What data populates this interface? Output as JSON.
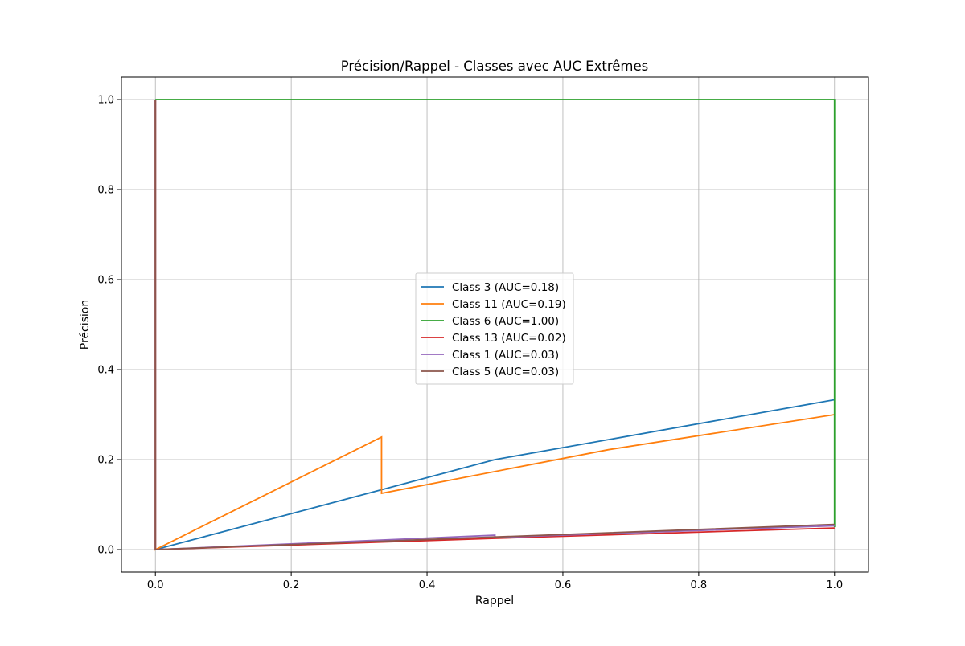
{
  "chart_data": {
    "type": "line",
    "title": "Précision/Rappel - Classes avec AUC Extrêmes",
    "xlabel": "Rappel",
    "ylabel": "Précision",
    "xlim": [
      -0.05,
      1.05
    ],
    "ylim": [
      -0.05,
      1.05
    ],
    "xticks": [
      0.0,
      0.2,
      0.4,
      0.6,
      0.8,
      1.0
    ],
    "yticks": [
      0.0,
      0.2,
      0.4,
      0.6,
      0.8,
      1.0
    ],
    "xtick_labels": [
      "0.0",
      "0.2",
      "0.4",
      "0.6",
      "0.8",
      "1.0"
    ],
    "ytick_labels": [
      "0.0",
      "0.2",
      "0.4",
      "0.6",
      "0.8",
      "1.0"
    ],
    "grid": true,
    "legend_position": "center",
    "series": [
      {
        "name": "Class 3 (AUC=0.18)",
        "color": "#1f77b4",
        "points": [
          [
            0,
            1.0
          ],
          [
            0,
            0.0
          ],
          [
            0.333,
            0.133
          ],
          [
            0.5,
            0.2
          ],
          [
            1.0,
            0.333
          ]
        ]
      },
      {
        "name": "Class 11 (AUC=0.19)",
        "color": "#ff7f0e",
        "points": [
          [
            0,
            1.0
          ],
          [
            0,
            0.0
          ],
          [
            0.333,
            0.25
          ],
          [
            0.333,
            0.125
          ],
          [
            0.667,
            0.222
          ],
          [
            1.0,
            0.3
          ]
        ]
      },
      {
        "name": "Class 6 (AUC=1.00)",
        "color": "#2ca02c",
        "points": [
          [
            0,
            1.0
          ],
          [
            1.0,
            1.0
          ],
          [
            1.0,
            0.05
          ]
        ]
      },
      {
        "name": "Class 13 (AUC=0.02)",
        "color": "#d62728",
        "points": [
          [
            0,
            1.0
          ],
          [
            0,
            0.0
          ],
          [
            0.5,
            0.025
          ],
          [
            1.0,
            0.048
          ]
        ]
      },
      {
        "name": "Class 1 (AUC=0.03)",
        "color": "#9467bd",
        "points": [
          [
            0,
            1.0
          ],
          [
            0,
            0.0
          ],
          [
            0.5,
            0.032
          ],
          [
            0.5,
            0.027
          ],
          [
            1.0,
            0.053
          ]
        ]
      },
      {
        "name": "Class 5 (AUC=0.03)",
        "color": "#8c564b",
        "points": [
          [
            0,
            1.0
          ],
          [
            0,
            0.0
          ],
          [
            0.5,
            0.028
          ],
          [
            1.0,
            0.056
          ]
        ]
      }
    ]
  }
}
